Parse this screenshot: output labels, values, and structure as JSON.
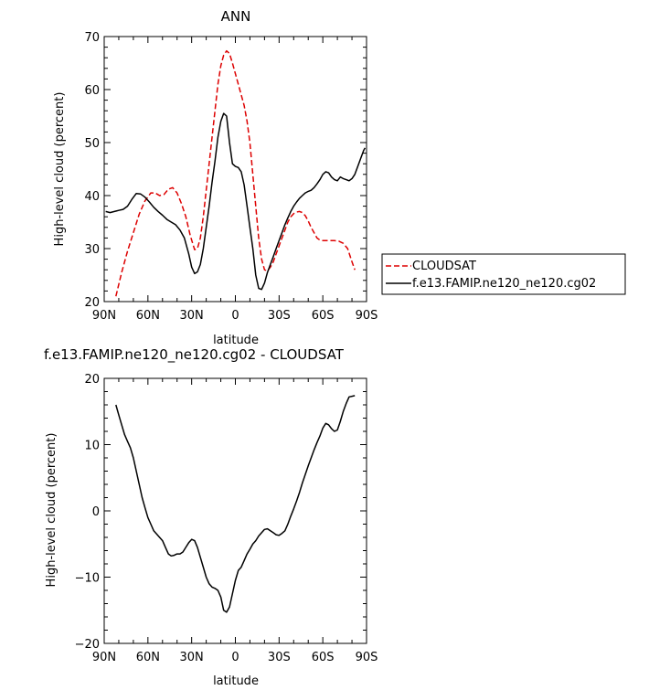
{
  "chart_data": [
    {
      "type": "line",
      "title": "ANN",
      "xlabel": "latitude",
      "ylabel": "High-level cloud (percent)",
      "xlim": [
        90,
        -90
      ],
      "ylim": [
        20,
        70
      ],
      "xticks": [
        {
          "value": 90,
          "label": "90N"
        },
        {
          "value": 60,
          "label": "60N"
        },
        {
          "value": 30,
          "label": "30N"
        },
        {
          "value": 0,
          "label": "0"
        },
        {
          "value": -30,
          "label": "30S"
        },
        {
          "value": -60,
          "label": "60S"
        },
        {
          "value": -90,
          "label": "90S"
        }
      ],
      "yticks": [
        20,
        30,
        40,
        50,
        60,
        70
      ],
      "legend_position": "right",
      "series": [
        {
          "name": "CLOUDSAT",
          "color": "#dd0000",
          "dash": "dashed",
          "x": [
            82,
            78,
            74,
            70,
            66,
            62,
            58,
            55,
            52,
            49,
            46,
            43,
            40,
            37,
            34,
            31,
            28,
            26,
            24,
            22,
            20,
            18,
            16,
            14,
            12,
            10,
            8,
            6,
            4,
            2,
            0,
            -2,
            -4,
            -6,
            -8,
            -10,
            -12,
            -14,
            -16,
            -18,
            -20,
            -22,
            -24,
            -26,
            -28,
            -30,
            -32,
            -34,
            -36,
            -38,
            -40,
            -42,
            -44,
            -46,
            -48,
            -50,
            -52,
            -54,
            -56,
            -58,
            -60,
            -62,
            -65,
            -68,
            -71,
            -74,
            -77,
            -80,
            -82
          ],
          "y": [
            21,
            25.5,
            29.5,
            33,
            36.5,
            39,
            40.5,
            40.5,
            40,
            40.2,
            41.2,
            41.5,
            40.5,
            38.5,
            36,
            32.5,
            29.8,
            30,
            32,
            36,
            41,
            46,
            51,
            56,
            61,
            64.5,
            66.5,
            67.3,
            66.8,
            65,
            63,
            61,
            59,
            57,
            54,
            50,
            44,
            38,
            32,
            28,
            26,
            25.8,
            26.5,
            27.5,
            29,
            30.5,
            32,
            33.5,
            35,
            36,
            36.6,
            36.9,
            37,
            36.8,
            36.2,
            35.2,
            34,
            33,
            32,
            31.6,
            31.5,
            31.5,
            31.5,
            31.5,
            31.4,
            31,
            30,
            27.5,
            26
          ]
        },
        {
          "name": "f.e13.FAMIP.ne120_ne120.cg02",
          "color": "#000000",
          "dash": "solid",
          "x": [
            89,
            86,
            83,
            80,
            77,
            74,
            71,
            68,
            65,
            62,
            59,
            56,
            53,
            50,
            47,
            44,
            41,
            38,
            35,
            32,
            30,
            28,
            26,
            24,
            22,
            20,
            18,
            16,
            14,
            12,
            10,
            8,
            6,
            4,
            2,
            0,
            -2,
            -4,
            -6,
            -8,
            -10,
            -12,
            -14,
            -16,
            -18,
            -20,
            -22,
            -24,
            -26,
            -28,
            -30,
            -32,
            -34,
            -36,
            -38,
            -40,
            -42,
            -44,
            -46,
            -48,
            -50,
            -52,
            -54,
            -56,
            -58,
            -60,
            -62,
            -64,
            -66,
            -68,
            -70,
            -72,
            -74,
            -76,
            -78,
            -80,
            -82,
            -84,
            -86,
            -88,
            -89
          ],
          "y": [
            37,
            36.8,
            37,
            37.2,
            37.4,
            38,
            39.3,
            40.4,
            40.3,
            39.7,
            38.8,
            37.8,
            37,
            36.3,
            35.5,
            35,
            34.5,
            33.5,
            32,
            29,
            26.5,
            25.3,
            25.6,
            27,
            30,
            34,
            38,
            42.5,
            46.5,
            51,
            54,
            55.5,
            55,
            50,
            46,
            45.5,
            45.3,
            44.5,
            42,
            38,
            34,
            30,
            25,
            22.5,
            22.3,
            23.5,
            25.5,
            27,
            28.5,
            30,
            31.5,
            33,
            34.5,
            35.8,
            37,
            38,
            38.8,
            39.5,
            40,
            40.5,
            40.8,
            41,
            41.5,
            42.2,
            43,
            44,
            44.5,
            44.3,
            43.5,
            43,
            42.8,
            43.5,
            43.2,
            43,
            42.8,
            43.2,
            44,
            45.5,
            47,
            48.5,
            49
          ]
        }
      ]
    },
    {
      "type": "line",
      "title": "f.e13.FAMIP.ne120_ne120.cg02 - CLOUDSAT",
      "xlabel": "latitude",
      "ylabel": "High-level cloud (percent)",
      "xlim": [
        90,
        -90
      ],
      "ylim": [
        -20,
        20
      ],
      "xticks": [
        {
          "value": 90,
          "label": "90N"
        },
        {
          "value": 60,
          "label": "60N"
        },
        {
          "value": 30,
          "label": "30N"
        },
        {
          "value": 0,
          "label": "0"
        },
        {
          "value": -30,
          "label": "30S"
        },
        {
          "value": -60,
          "label": "60S"
        },
        {
          "value": -90,
          "label": "90S"
        }
      ],
      "yticks": [
        -20,
        -10,
        0,
        10,
        20
      ],
      "series": [
        {
          "color": "#000000",
          "dash": "solid",
          "x": [
            82,
            80,
            78,
            76,
            74,
            72,
            70,
            68,
            66,
            64,
            62,
            60,
            58,
            56,
            54,
            52,
            50,
            48,
            46,
            44,
            42,
            40,
            38,
            36,
            34,
            32,
            30,
            28,
            26,
            24,
            22,
            20,
            18,
            16,
            14,
            12,
            10,
            8,
            6,
            4,
            2,
            0,
            -2,
            -4,
            -6,
            -8,
            -10,
            -12,
            -14,
            -16,
            -18,
            -20,
            -22,
            -24,
            -26,
            -28,
            -30,
            -32,
            -34,
            -36,
            -38,
            -40,
            -42,
            -44,
            -46,
            -48,
            -50,
            -52,
            -54,
            -56,
            -58,
            -60,
            -62,
            -64,
            -66,
            -68,
            -70,
            -72,
            -74,
            -76,
            -78,
            -80,
            -82
          ],
          "y": [
            16,
            14.5,
            13,
            11.5,
            10.5,
            9.5,
            8,
            6,
            4,
            2,
            0.5,
            -1,
            -2,
            -3,
            -3.5,
            -4,
            -4.5,
            -5.5,
            -6.5,
            -6.8,
            -6.7,
            -6.5,
            -6.5,
            -6.2,
            -5.5,
            -4.8,
            -4.3,
            -4.5,
            -5.5,
            -7,
            -8.5,
            -10,
            -11,
            -11.5,
            -11.7,
            -12,
            -13,
            -15,
            -15.3,
            -14.5,
            -12.5,
            -10.5,
            -9,
            -8.5,
            -7.5,
            -6.5,
            -5.8,
            -5,
            -4.5,
            -3.8,
            -3.3,
            -2.8,
            -2.7,
            -3,
            -3.3,
            -3.6,
            -3.7,
            -3.4,
            -3,
            -2,
            -0.8,
            0.3,
            1.5,
            2.8,
            4.2,
            5.5,
            6.8,
            8,
            9.2,
            10.3,
            11.3,
            12.5,
            13.2,
            13,
            12.4,
            12,
            12.2,
            13.5,
            15,
            16.2,
            17.2,
            17.3,
            17.4
          ]
        }
      ]
    }
  ]
}
